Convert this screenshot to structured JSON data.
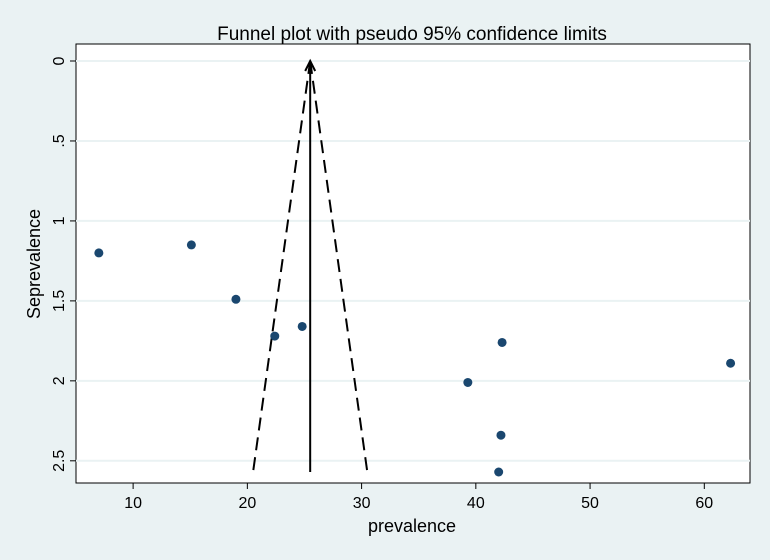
{
  "chart_data": {
    "type": "scatter",
    "title": "Funnel plot with pseudo 95% confidence limits",
    "xlabel": "prevalence",
    "ylabel": "Seprevalence",
    "xlim": [
      5,
      64
    ],
    "ylim": [
      0,
      2.57
    ],
    "y_reversed": true,
    "grid": true,
    "x_ticks": [
      10,
      20,
      30,
      40,
      50,
      60
    ],
    "y_ticks": [
      0,
      0.5,
      1,
      1.5,
      2,
      2.5
    ],
    "y_tick_labels": [
      "0",
      ".5",
      "1",
      "1.5",
      "2",
      "2.5"
    ],
    "pooled_estimate": 25.5,
    "ci_limits": {
      "apex": [
        25.5,
        0
      ],
      "lower": [
        20.5,
        2.57
      ],
      "upper": [
        30.5,
        2.57
      ]
    },
    "points": [
      {
        "x": 7.0,
        "y": 1.2
      },
      {
        "x": 15.1,
        "y": 1.15
      },
      {
        "x": 19.0,
        "y": 1.49
      },
      {
        "x": 22.4,
        "y": 1.72
      },
      {
        "x": 24.8,
        "y": 1.66
      },
      {
        "x": 39.3,
        "y": 2.01
      },
      {
        "x": 42.3,
        "y": 1.76
      },
      {
        "x": 62.3,
        "y": 1.89
      },
      {
        "x": 42.2,
        "y": 2.34
      },
      {
        "x": 42.0,
        "y": 2.57
      }
    ],
    "colors": {
      "background": "#eaf2f3",
      "plot_background": "#ffffff",
      "grid": "#eaf2f3",
      "point": "#1a476f",
      "line": "#000000"
    }
  }
}
